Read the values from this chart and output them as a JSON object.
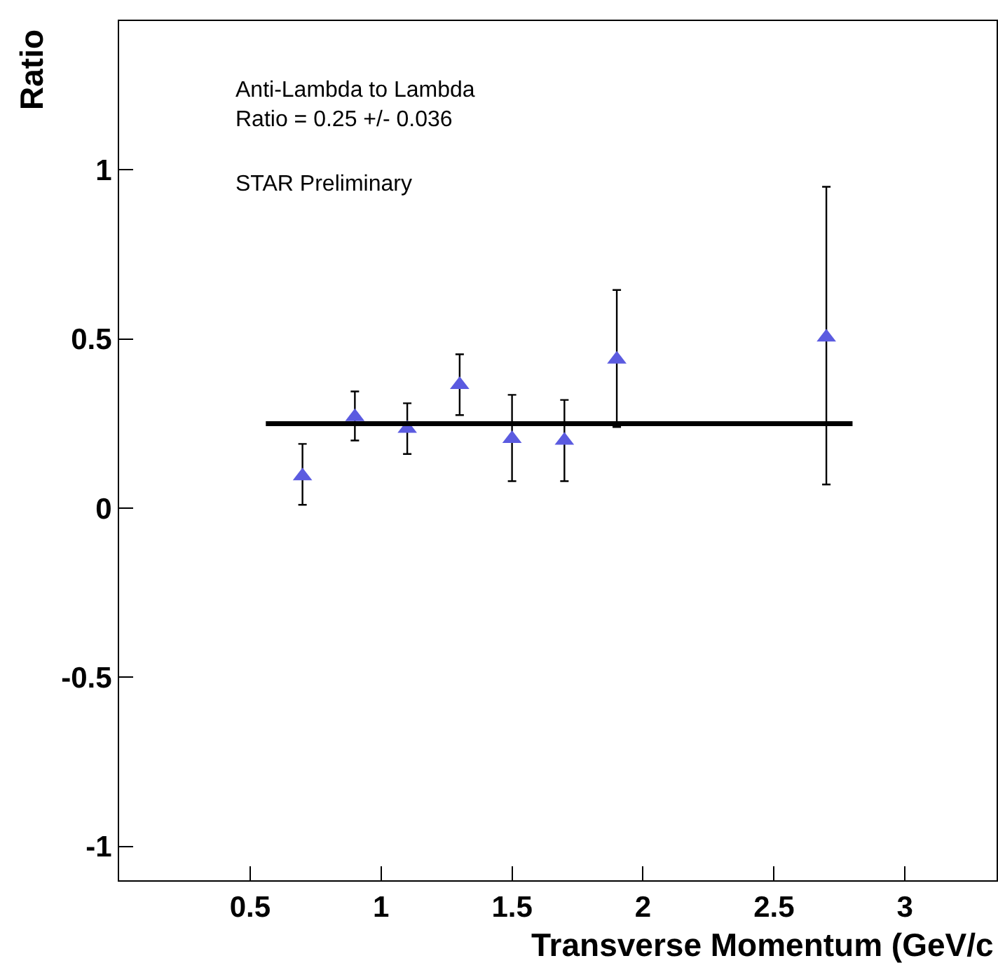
{
  "chart_data": {
    "type": "scatter",
    "xlabel": "Transverse Momentum (GeV/c",
    "ylabel": "Ratio",
    "annotations": [
      "Anti-Lambda to Lambda",
      "Ratio = 0.25 +/- 0.036",
      "STAR Preliminary"
    ],
    "xlim": [
      0,
      3.35
    ],
    "ylim": [
      -1.1,
      1.44
    ],
    "xticks": [
      0.5,
      1,
      1.5,
      2,
      2.5,
      3
    ],
    "yticks": [
      -1,
      -0.5,
      0,
      0.5,
      1
    ],
    "marker": "triangle",
    "series": [
      {
        "color": "#5b5be0",
        "x": [
          0.7,
          0.9,
          1.1,
          1.3,
          1.5,
          1.7,
          1.9,
          2.7
        ],
        "values": [
          0.095,
          0.27,
          0.235,
          0.365,
          0.205,
          0.2,
          0.44,
          0.505
        ],
        "errors": [
          [
            0.01,
            0.19
          ],
          [
            0.2,
            0.345
          ],
          [
            0.16,
            0.31
          ],
          [
            0.275,
            0.455
          ],
          [
            0.08,
            0.335
          ],
          [
            0.08,
            0.32
          ],
          [
            0.24,
            0.645
          ],
          [
            0.07,
            0.95
          ]
        ]
      },
      {
        "type": "line",
        "color": "#000000",
        "x": [
          0.56,
          2.8
        ],
        "values": [
          0.25,
          0.25
        ],
        "marker": "none",
        "line_style": "solid"
      }
    ]
  }
}
